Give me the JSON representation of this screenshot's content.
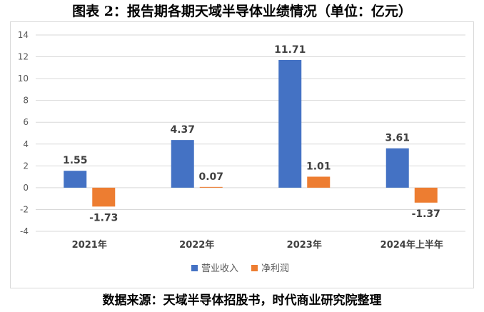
{
  "title": "图表 2：报告期各期天域半导体业绩情况（单位：亿元）",
  "source": "数据来源：天域半导体招股书，时代商业研究院整理",
  "chart_data": {
    "type": "bar",
    "categories": [
      "2021年",
      "2022年",
      "2023年",
      "2024年上半年"
    ],
    "series": [
      {
        "name": "营业收入",
        "values": [
          1.55,
          4.37,
          11.71,
          3.61
        ],
        "color": "#4472c4"
      },
      {
        "name": "净利润",
        "values": [
          -1.73,
          0.07,
          1.01,
          -1.37
        ],
        "color": "#ed7d31"
      }
    ],
    "data_labels": [
      [
        "1.55",
        "4.37",
        "11.71",
        "3.61"
      ],
      [
        "-1.73",
        "0.07",
        "1.01",
        "-1.37"
      ]
    ],
    "ylim": [
      -4,
      14
    ],
    "yticks": [
      -4,
      -2,
      0,
      2,
      4,
      6,
      8,
      10,
      12,
      14
    ],
    "grid": true,
    "legend": "bottom",
    "xlabel": "",
    "ylabel": ""
  }
}
